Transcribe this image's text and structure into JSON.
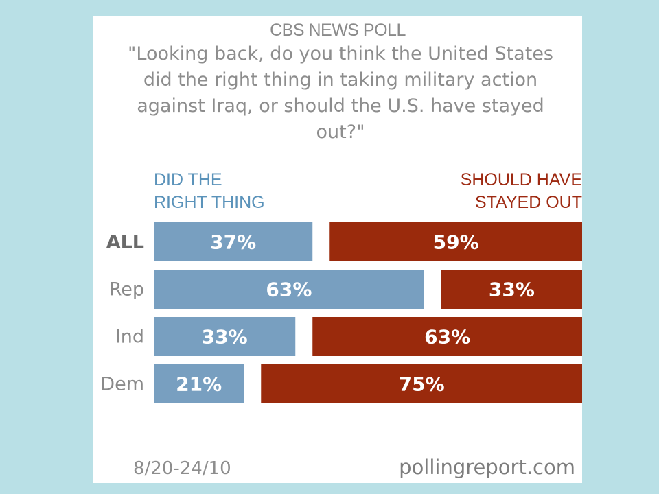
{
  "source": "CBS NEWS POLL",
  "question": "\"Looking back, do you think the United States did the right thing in taking military action against Iraq, or should the U.S. have stayed out?\"",
  "header_left": [
    "DID THE",
    "RIGHT THING"
  ],
  "header_right": [
    "SHOULD HAVE",
    "STAYED OUT"
  ],
  "date": "8/20-24/10",
  "site": "pollingreport.com",
  "colors": {
    "right_thing": "#789fc0",
    "stayed_out": "#9a2a0c",
    "background": "#b9e0e6"
  },
  "chart_data": {
    "type": "bar",
    "orientation": "horizontal",
    "categories": [
      "ALL",
      "Rep",
      "Ind",
      "Dem"
    ],
    "series": [
      {
        "name": "DID THE RIGHT THING",
        "values": [
          37,
          63,
          33,
          21
        ],
        "labels": [
          "37%",
          "63%",
          "33%",
          "21%"
        ]
      },
      {
        "name": "SHOULD HAVE STAYED OUT",
        "values": [
          59,
          33,
          63,
          75
        ],
        "labels": [
          "59%",
          "33%",
          "63%",
          "75%"
        ]
      }
    ]
  }
}
